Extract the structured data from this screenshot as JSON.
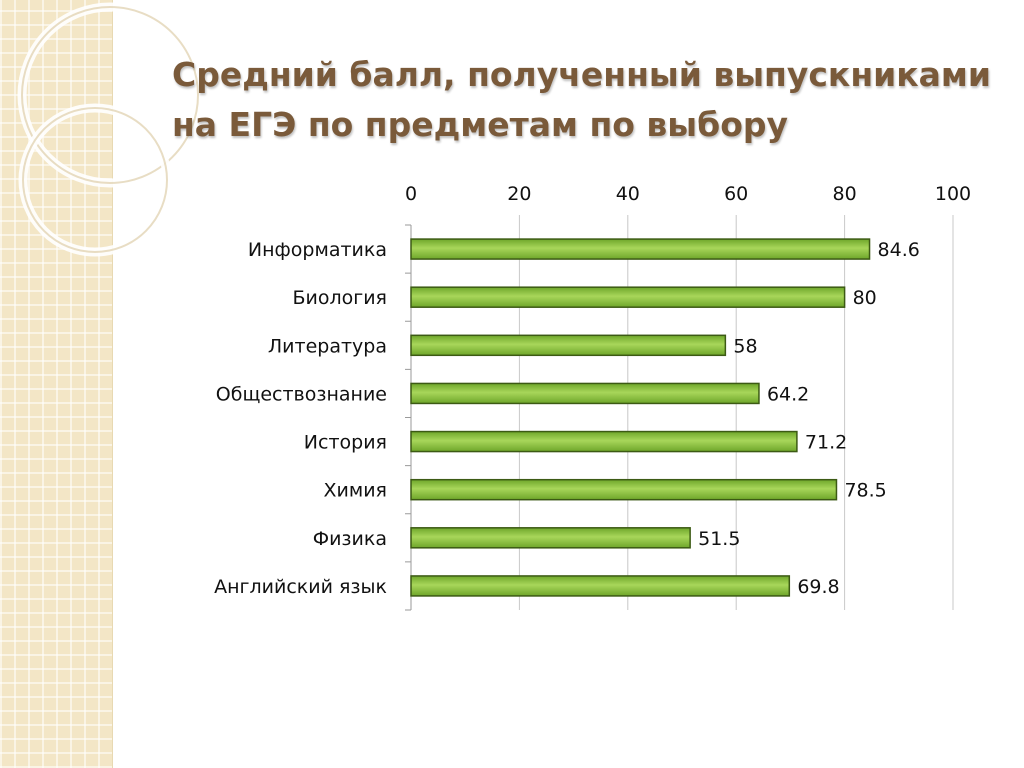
{
  "title": {
    "line1": "Средний балл, полученный выпускниками",
    "line2": "на ЕГЭ по предметам по выбору"
  },
  "colors": {
    "bar_fill_light": "#a8d65a",
    "bar_fill_dark": "#6ea62a",
    "bar_stroke": "#3c5a14",
    "title": "#7a5a3a",
    "grid": "#c8c8c8",
    "side_panel": "#f3e6c6"
  },
  "chart_data": {
    "type": "bar",
    "orientation": "horizontal",
    "title": "Средний балл, полученный выпускниками на ЕГЭ по предметам по выбору",
    "categories": [
      "Информатика",
      "Биология",
      "Литература",
      "Обществознание",
      "История",
      "Химия",
      "Физика",
      "Английский язык"
    ],
    "values": [
      84.6,
      80,
      58,
      64.2,
      71.2,
      78.5,
      51.5,
      69.8
    ],
    "value_labels": [
      "84.6",
      "80",
      "58",
      "64.2",
      "71.2",
      "78.5",
      "51.5",
      "69.8"
    ],
    "xlim": [
      0,
      100
    ],
    "xticks": [
      0,
      20,
      40,
      60,
      80,
      100
    ],
    "xtick_labels": [
      "0",
      "20",
      "40",
      "60",
      "80",
      "100"
    ],
    "xaxis_position": "top",
    "grid": true,
    "legend": "none",
    "xlabel": "",
    "ylabel": ""
  }
}
